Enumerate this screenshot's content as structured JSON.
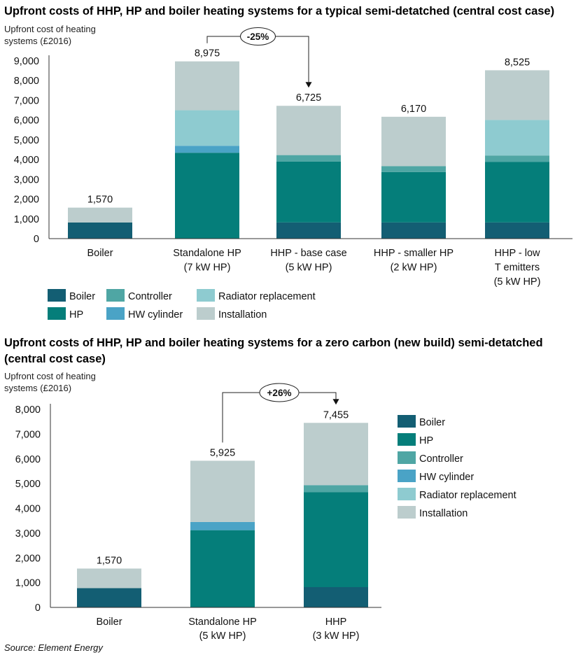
{
  "colors": {
    "Boiler": "#135e73",
    "HP": "#057e7a",
    "Controller": "#4fa6a4",
    "HW cylinder": "#4aa3c6",
    "Radiator replacement": "#8ecbd0",
    "Installation": "#bccdcd"
  },
  "chart_data": [
    {
      "type": "bar",
      "stacked": true,
      "title": "Upfront costs of HHP, HP and boiler heating systems for a typical semi-detatched (central cost case)",
      "ylabel": [
        "Upfront cost of heating",
        "systems (£2016)"
      ],
      "ylim": [
        0,
        9000
      ],
      "yticks": [
        0,
        1000,
        2000,
        3000,
        4000,
        5000,
        6000,
        7000,
        8000,
        9000
      ],
      "ytick_labels": [
        "0",
        "1,000",
        "2,000",
        "3,000",
        "4,000",
        "5,000",
        "6,000",
        "7,000",
        "8,000",
        "9,000"
      ],
      "categories": [
        [
          "Boiler"
        ],
        [
          "Standalone HP",
          "(7 kW HP)"
        ],
        [
          "HHP - base case",
          "(5 kW HP)"
        ],
        [
          "HHP - smaller HP",
          "(2 kW HP)"
        ],
        [
          "HHP - low",
          "T emitters",
          "(5 kW HP)"
        ]
      ],
      "totals": [
        "1,570",
        "8,975",
        "6,725",
        "6,170",
        "8,525"
      ],
      "series": [
        {
          "name": "Boiler",
          "values": [
            820,
            0,
            820,
            820,
            820
          ]
        },
        {
          "name": "HP",
          "values": [
            0,
            4350,
            3080,
            2550,
            3060
          ]
        },
        {
          "name": "Controller",
          "values": [
            0,
            0,
            330,
            300,
            330
          ]
        },
        {
          "name": "HW cylinder",
          "values": [
            0,
            350,
            0,
            0,
            0
          ]
        },
        {
          "name": "Radiator replacement",
          "values": [
            0,
            1800,
            0,
            0,
            1800
          ]
        },
        {
          "name": "Installation",
          "values": [
            750,
            2475,
            2495,
            2500,
            2515
          ]
        }
      ],
      "annotation": {
        "label": "-25%",
        "from": 1,
        "to": 2
      },
      "legend": {
        "placement": "bottom",
        "order": [
          "Boiler",
          "Controller",
          "Radiator replacement",
          "HP",
          "HW cylinder",
          "Installation"
        ]
      },
      "grid": false
    },
    {
      "type": "bar",
      "stacked": true,
      "title": [
        "Upfront costs of HHP, HP and boiler heating systems for a zero carbon (new build) semi-detatched",
        "(central cost case)"
      ],
      "ylabel": [
        "Upfront cost of heating",
        "systems (£2016)"
      ],
      "ylim": [
        0,
        8000
      ],
      "yticks": [
        0,
        1000,
        2000,
        3000,
        4000,
        5000,
        6000,
        7000,
        8000
      ],
      "ytick_labels": [
        "0",
        "1,000",
        "2,000",
        "3,000",
        "4,000",
        "5,000",
        "6,000",
        "7,000",
        "8,000"
      ],
      "categories": [
        [
          "Boiler"
        ],
        [
          "Standalone HP",
          "(5 kW HP)"
        ],
        [
          "HHP",
          "(3 kW HP)"
        ]
      ],
      "totals": [
        "1,570",
        "5,925",
        "7,455"
      ],
      "series": [
        {
          "name": "Boiler",
          "values": [
            780,
            0,
            820
          ]
        },
        {
          "name": "HP",
          "values": [
            0,
            3120,
            3840
          ]
        },
        {
          "name": "Controller",
          "values": [
            0,
            0,
            280
          ]
        },
        {
          "name": "HW cylinder",
          "values": [
            0,
            330,
            0
          ]
        },
        {
          "name": "Radiator replacement",
          "values": [
            0,
            0,
            0
          ]
        },
        {
          "name": "Installation",
          "values": [
            790,
            2475,
            2515
          ]
        }
      ],
      "annotation": {
        "label": "+26%",
        "from": 1,
        "to": 2
      },
      "legend": {
        "placement": "right",
        "order": [
          "Boiler",
          "HP",
          "Controller",
          "HW cylinder",
          "Radiator replacement",
          "Installation"
        ]
      },
      "grid": false
    }
  ],
  "source": "Source: Element Energy"
}
